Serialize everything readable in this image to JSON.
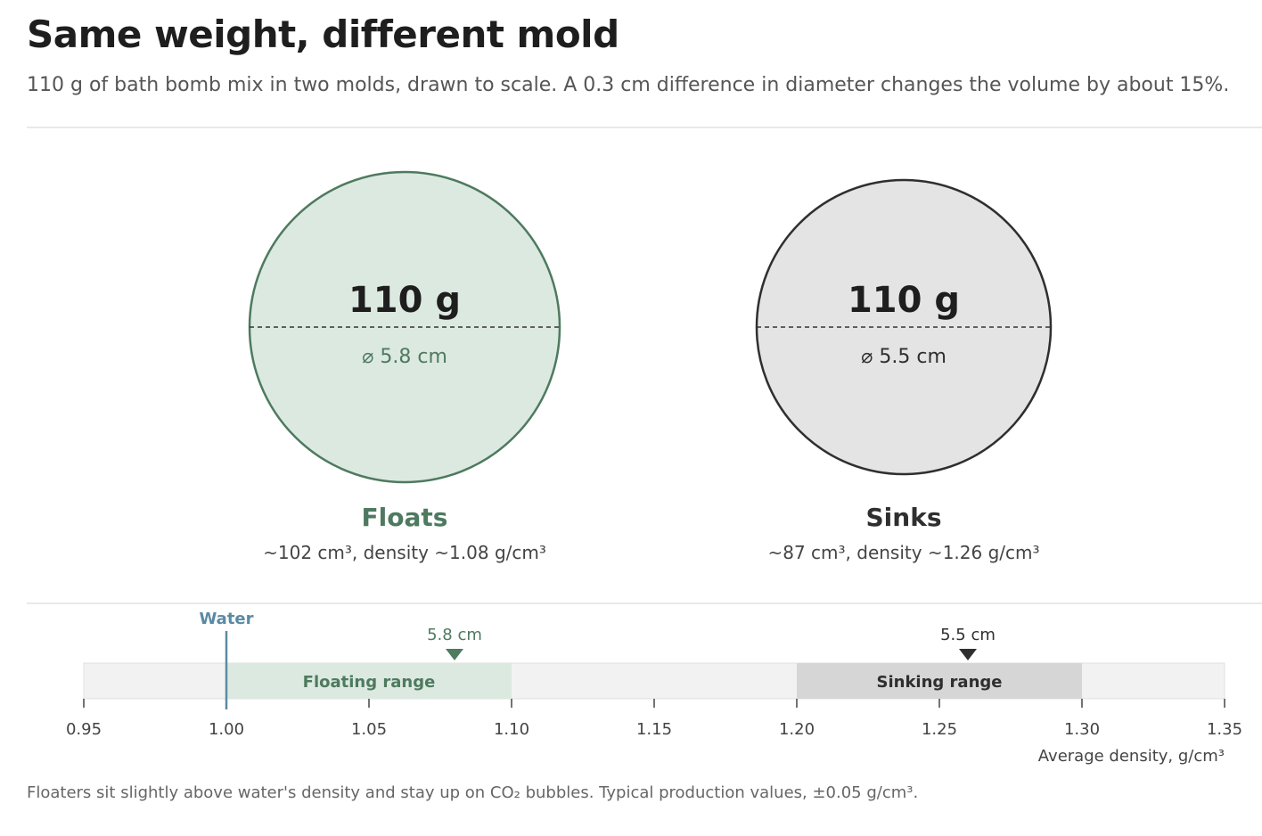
{
  "header": {
    "title": "Same weight, different mold",
    "subtitle": "110 g of bath bomb mix in two molds, drawn to scale. A 0.3 cm difference in diameter changes the volume by about 15%."
  },
  "colors": {
    "float_stroke": "#4e7a5f",
    "float_fill": "#dce9e0",
    "sink_stroke": "#2f2f2f",
    "sink_fill": "#e4e4e4",
    "water": "#5b8aa3",
    "float_band": "#dce9e0",
    "sink_band": "#d6d6d6",
    "track": "#f2f2f2"
  },
  "molds": [
    {
      "id": "floats",
      "mass_label": "110 g",
      "diameter_label": "⌀ 5.8 cm",
      "outcome": "Floats",
      "details": "~102 cm³, density ~1.08 g/cm³",
      "diameter_cm": 5.8
    },
    {
      "id": "sinks",
      "mass_label": "110 g",
      "diameter_label": "⌀ 5.5 cm",
      "outcome": "Sinks",
      "details": "~87 cm³, density ~1.26 g/cm³",
      "diameter_cm": 5.5
    }
  ],
  "chart_data": {
    "type": "number-line",
    "xlabel": "Average density, g/cm³",
    "xlim": [
      0.95,
      1.35
    ],
    "ticks": [
      "0.95",
      "1.00",
      "1.05",
      "1.10",
      "1.15",
      "1.20",
      "1.25",
      "1.30",
      "1.35"
    ],
    "reference_lines": [
      {
        "label": "Water",
        "value": 1.0
      }
    ],
    "ranges": [
      {
        "label": "Floating range",
        "from": 1.0,
        "to": 1.1
      },
      {
        "label": "Sinking range",
        "from": 1.2,
        "to": 1.3
      }
    ],
    "markers": [
      {
        "label": "5.8 cm",
        "value": 1.08
      },
      {
        "label": "5.5 cm",
        "value": 1.26
      }
    ]
  },
  "footnote": "Floaters sit slightly above water's density and stay up on CO₂ bubbles. Typical production values, ±0.05 g/cm³."
}
